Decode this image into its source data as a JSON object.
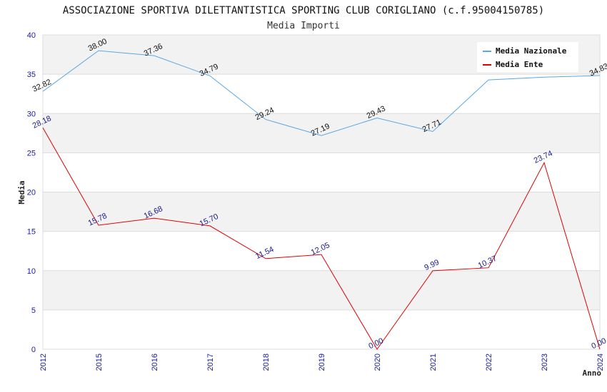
{
  "chart_data": {
    "type": "line",
    "title": "ASSOCIAZIONE SPORTIVA DILETTANTISTICA SPORTING CLUB CORIGLIANO (c.f.95004150785)",
    "subtitle": "Media Importi",
    "xlabel": "Anno",
    "ylabel": "Media",
    "ylim": [
      0,
      40
    ],
    "yticks": [
      "0",
      "5",
      "10",
      "15",
      "20",
      "25",
      "30",
      "35",
      "40"
    ],
    "categories": [
      "2012",
      "2015",
      "2016",
      "2017",
      "2018",
      "2019",
      "2020",
      "2021",
      "2022",
      "2023",
      "2024"
    ],
    "series": [
      {
        "name": "Media Nazionale",
        "color": "#5aa7e6",
        "values": [
          32.82,
          38.0,
          37.36,
          34.79,
          29.24,
          27.19,
          29.43,
          27.71,
          34.28,
          34.62,
          34.83
        ],
        "labels": [
          "32.82",
          "38.00",
          "37.36",
          "34.79",
          "29.24",
          "27.19",
          "29.43",
          "27.71",
          "",
          "",
          "34.83"
        ]
      },
      {
        "name": "Media Ente",
        "color": "#e00000",
        "values": [
          28.18,
          15.78,
          16.68,
          15.7,
          11.54,
          12.05,
          0.0,
          9.99,
          10.37,
          23.74,
          0.0
        ],
        "labels": [
          "28.18",
          "15.78",
          "16.68",
          "15.70",
          "11.54",
          "12.05",
          "0.00",
          "9.99",
          "10.37",
          "23.74",
          "0.00"
        ]
      }
    ],
    "grid": true,
    "legend_position": "top-right"
  }
}
